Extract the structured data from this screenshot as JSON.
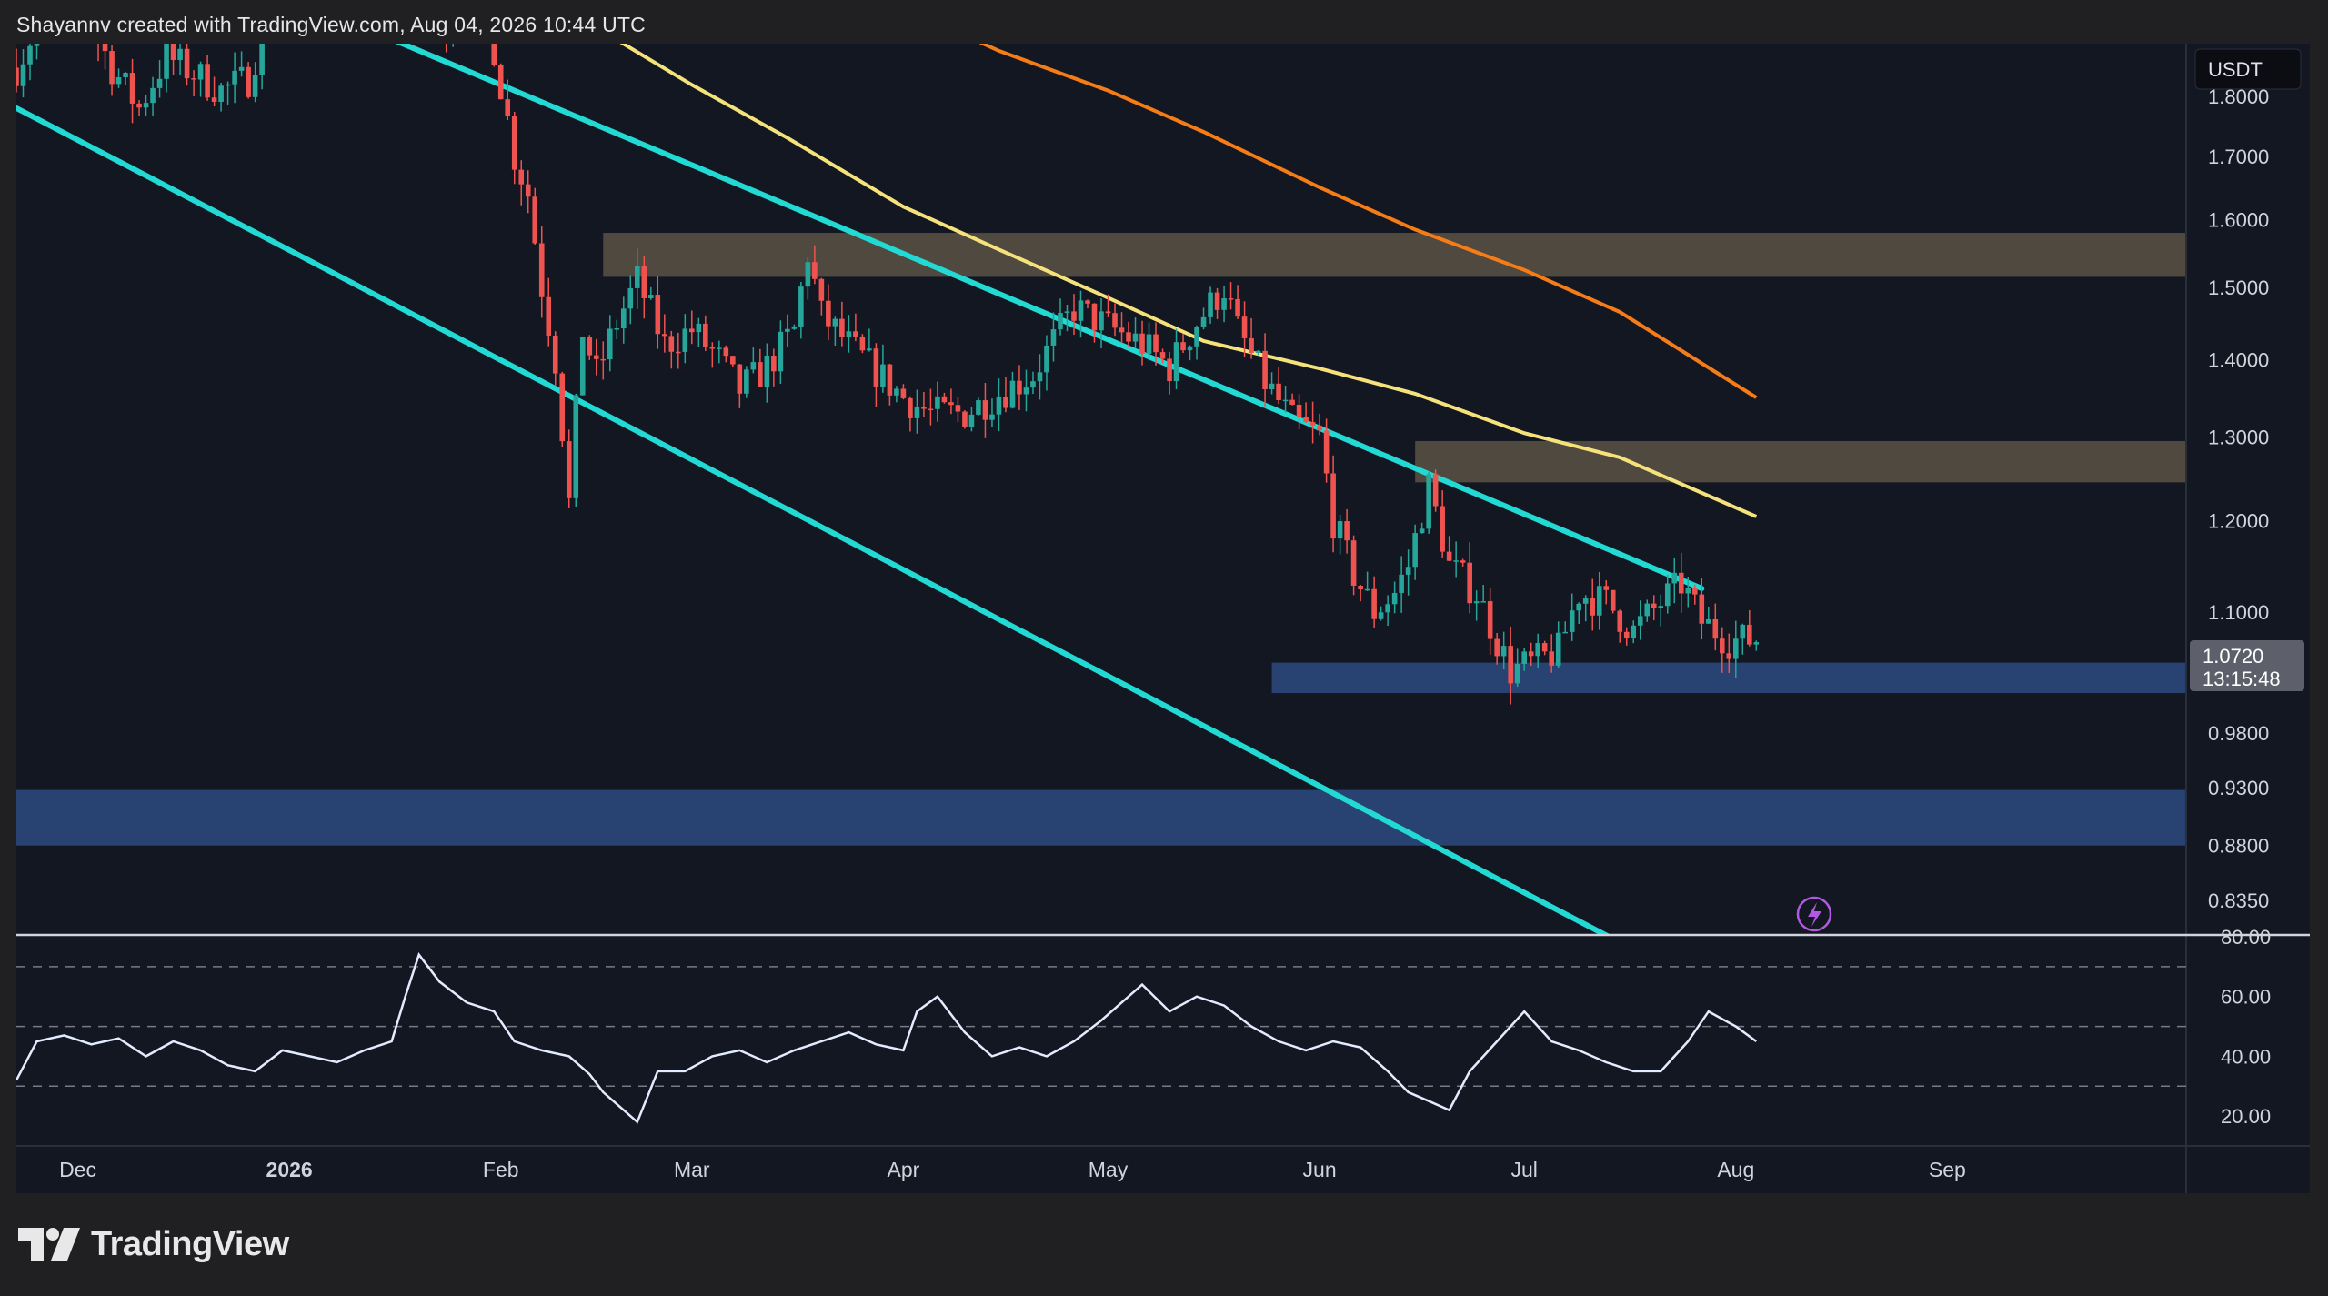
{
  "header": {
    "credit": "Shayannv created with TradingView.com, Aug 04, 2026 10:44 UTC"
  },
  "brand": {
    "name": "TradingView",
    "logo_icon": "tradingview-logo-icon"
  },
  "chart_data": {
    "type": "candlestick",
    "currency": "USDT",
    "price_axis": {
      "ticks": [
        1.8,
        1.7,
        1.6,
        1.5,
        1.4,
        1.3,
        1.2,
        1.1,
        0.98,
        0.93,
        0.88,
        0.835
      ],
      "tick_labels": [
        "1.8000",
        "1.7000",
        "1.6000",
        "1.5000",
        "1.4000",
        "1.3000",
        "1.2000",
        "1.1000",
        "0.9800",
        "0.9300",
        "0.8800",
        "0.8350"
      ],
      "scale": "log",
      "range": [
        0.808,
        1.893
      ]
    },
    "time_axis": {
      "labels": [
        "Dec",
        "2026",
        "Feb",
        "Mar",
        "Apr",
        "May",
        "Jun",
        "Jul",
        "Aug",
        "Sep"
      ],
      "label_dates": [
        "2025-12-01",
        "2026-01-01",
        "2026-02-01",
        "2026-03-01",
        "2026-04-01",
        "2026-05-01",
        "2026-06-01",
        "2026-07-01",
        "2026-08-01",
        "2026-09-01"
      ],
      "range": [
        "2025-11-22",
        "2026-10-06"
      ]
    },
    "last_price": {
      "value": 1.072,
      "label": "1.0720",
      "countdown": "13:15:48"
    },
    "zones": [
      {
        "type": "supply",
        "from": "2026-02-16",
        "to": "2026-10-06",
        "low": 1.515,
        "high": 1.58,
        "color": "#5b5244"
      },
      {
        "type": "supply",
        "from": "2026-06-15",
        "to": "2026-10-06",
        "low": 1.245,
        "high": 1.295,
        "color": "#5b5244"
      },
      {
        "type": "demand",
        "from": "2026-05-25",
        "to": "2026-10-06",
        "low": 1.018,
        "high": 1.048,
        "color": "#2d4a7f"
      },
      {
        "type": "demand",
        "from": "2025-11-22",
        "to": "2026-10-06",
        "low": 0.88,
        "high": 0.928,
        "color": "#2d4a7f"
      }
    ],
    "trendlines": [
      {
        "name": "upper channel",
        "points": [
          [
            "2026-01-03",
            1.97
          ],
          [
            "2026-07-27",
            1.125
          ]
        ],
        "color": "#22d9d3"
      },
      {
        "name": "lower channel",
        "points": [
          [
            "2025-11-22",
            1.78
          ],
          [
            "2026-07-14",
            0.805
          ]
        ],
        "color": "#22d9d3"
      }
    ],
    "moving_averages": [
      {
        "color": "#f5e27a",
        "points": [
          [
            "2026-02-03",
            2.0
          ],
          [
            "2026-02-18",
            1.9
          ],
          [
            "2026-03-01",
            1.82
          ],
          [
            "2026-03-15",
            1.73
          ],
          [
            "2026-04-01",
            1.62
          ],
          [
            "2026-04-15",
            1.555
          ],
          [
            "2026-05-01",
            1.485
          ],
          [
            "2026-05-15",
            1.425
          ],
          [
            "2026-06-01",
            1.388
          ],
          [
            "2026-06-15",
            1.355
          ],
          [
            "2026-07-01",
            1.305
          ],
          [
            "2026-07-15",
            1.275
          ],
          [
            "2026-08-04",
            1.205
          ]
        ]
      },
      {
        "color": "#f57c17",
        "points": [
          [
            "2026-04-01",
            1.96
          ],
          [
            "2026-04-15",
            1.88
          ],
          [
            "2026-05-01",
            1.81
          ],
          [
            "2026-05-15",
            1.74
          ],
          [
            "2026-06-01",
            1.65
          ],
          [
            "2026-06-15",
            1.585
          ],
          [
            "2026-07-01",
            1.525
          ],
          [
            "2026-07-15",
            1.465
          ],
          [
            "2026-08-04",
            1.35
          ]
        ]
      }
    ],
    "price_path": [
      [
        "2025-11-22",
        1.85
      ],
      [
        "2025-11-26",
        1.95
      ],
      [
        "2025-12-01",
        1.98
      ],
      [
        "2025-12-06",
        1.85
      ],
      [
        "2025-12-10",
        1.78
      ],
      [
        "2025-12-14",
        1.87
      ],
      [
        "2025-12-18",
        1.84
      ],
      [
        "2025-12-22",
        1.81
      ],
      [
        "2025-12-26",
        1.83
      ],
      [
        "2025-12-29",
        1.95
      ],
      [
        "2026-01-02",
        2.02
      ],
      [
        "2026-01-10",
        2.05
      ],
      [
        "2026-01-20",
        2.0
      ],
      [
        "2026-01-24",
        1.93
      ],
      [
        "2026-01-27",
        1.96
      ],
      [
        "2026-01-30",
        1.95
      ],
      [
        "2026-02-01",
        1.82
      ],
      [
        "2026-02-03",
        1.7
      ],
      [
        "2026-02-05",
        1.64
      ],
      [
        "2026-02-07",
        1.5
      ],
      [
        "2026-02-09",
        1.4
      ],
      [
        "2026-02-11",
        1.22
      ],
      [
        "2026-02-13",
        1.44
      ],
      [
        "2026-02-15",
        1.38
      ],
      [
        "2026-02-18",
        1.45
      ],
      [
        "2026-02-21",
        1.51
      ],
      [
        "2026-02-25",
        1.42
      ],
      [
        "2026-03-01",
        1.44
      ],
      [
        "2026-03-05",
        1.4
      ],
      [
        "2026-03-08",
        1.36
      ],
      [
        "2026-03-12",
        1.39
      ],
      [
        "2026-03-16",
        1.44
      ],
      [
        "2026-03-18",
        1.55
      ],
      [
        "2026-03-20",
        1.46
      ],
      [
        "2026-03-25",
        1.41
      ],
      [
        "2026-04-01",
        1.35
      ],
      [
        "2026-04-05",
        1.33
      ],
      [
        "2026-04-10",
        1.33
      ],
      [
        "2026-04-16",
        1.36
      ],
      [
        "2026-04-20",
        1.38
      ],
      [
        "2026-04-26",
        1.47
      ],
      [
        "2026-05-02",
        1.44
      ],
      [
        "2026-05-06",
        1.42
      ],
      [
        "2026-05-10",
        1.39
      ],
      [
        "2026-05-14",
        1.45
      ],
      [
        "2026-05-18",
        1.5
      ],
      [
        "2026-05-20",
        1.44
      ],
      [
        "2026-05-24",
        1.37
      ],
      [
        "2026-05-28",
        1.32
      ],
      [
        "2026-06-01",
        1.3
      ],
      [
        "2026-06-03",
        1.2
      ],
      [
        "2026-06-06",
        1.14
      ],
      [
        "2026-06-09",
        1.1
      ],
      [
        "2026-06-12",
        1.12
      ],
      [
        "2026-06-14",
        1.15
      ],
      [
        "2026-06-17",
        1.24
      ],
      [
        "2026-06-20",
        1.15
      ],
      [
        "2026-06-24",
        1.12
      ],
      [
        "2026-06-27",
        1.07
      ],
      [
        "2026-06-29",
        1.04
      ],
      [
        "2026-07-03",
        1.05
      ],
      [
        "2026-07-06",
        1.06
      ],
      [
        "2026-07-09",
        1.12
      ],
      [
        "2026-07-13",
        1.11
      ],
      [
        "2026-07-17",
        1.08
      ],
      [
        "2026-07-21",
        1.11
      ],
      [
        "2026-07-24",
        1.13
      ],
      [
        "2026-07-27",
        1.09
      ],
      [
        "2026-07-31",
        1.07
      ],
      [
        "2026-08-04",
        1.072
      ]
    ],
    "rsi": {
      "ticks": [
        80,
        60,
        40,
        20
      ],
      "tick_labels": [
        "80.00",
        "60.00",
        "40.00",
        "20.00"
      ],
      "levels": [
        70,
        50,
        30
      ],
      "range": [
        10,
        80
      ],
      "points": [
        [
          "2025-11-22",
          32
        ],
        [
          "2025-11-25",
          45
        ],
        [
          "2025-11-29",
          47
        ],
        [
          "2025-12-03",
          44
        ],
        [
          "2025-12-07",
          46
        ],
        [
          "2025-12-11",
          40
        ],
        [
          "2025-12-15",
          45
        ],
        [
          "2025-12-19",
          42
        ],
        [
          "2025-12-23",
          37
        ],
        [
          "2025-12-27",
          35
        ],
        [
          "2025-12-31",
          42
        ],
        [
          "2026-01-04",
          40
        ],
        [
          "2026-01-08",
          38
        ],
        [
          "2026-01-12",
          42
        ],
        [
          "2026-01-16",
          45
        ],
        [
          "2026-01-18",
          60
        ],
        [
          "2026-01-20",
          74
        ],
        [
          "2026-01-23",
          65
        ],
        [
          "2026-01-27",
          58
        ],
        [
          "2026-01-31",
          55
        ],
        [
          "2026-02-03",
          45
        ],
        [
          "2026-02-07",
          42
        ],
        [
          "2026-02-11",
          40
        ],
        [
          "2026-02-14",
          34
        ],
        [
          "2026-02-16",
          28
        ],
        [
          "2026-02-19",
          22
        ],
        [
          "2026-02-21",
          18
        ],
        [
          "2026-02-24",
          35
        ],
        [
          "2026-02-28",
          35
        ],
        [
          "2026-03-04",
          40
        ],
        [
          "2026-03-08",
          42
        ],
        [
          "2026-03-12",
          38
        ],
        [
          "2026-03-16",
          42
        ],
        [
          "2026-03-20",
          45
        ],
        [
          "2026-03-24",
          48
        ],
        [
          "2026-03-28",
          44
        ],
        [
          "2026-04-01",
          42
        ],
        [
          "2026-04-03",
          55
        ],
        [
          "2026-04-06",
          60
        ],
        [
          "2026-04-10",
          48
        ],
        [
          "2026-04-14",
          40
        ],
        [
          "2026-04-18",
          43
        ],
        [
          "2026-04-22",
          40
        ],
        [
          "2026-04-26",
          45
        ],
        [
          "2026-04-30",
          52
        ],
        [
          "2026-05-04",
          60
        ],
        [
          "2026-05-06",
          64
        ],
        [
          "2026-05-10",
          55
        ],
        [
          "2026-05-14",
          60
        ],
        [
          "2026-05-18",
          57
        ],
        [
          "2026-05-22",
          50
        ],
        [
          "2026-05-26",
          45
        ],
        [
          "2026-05-30",
          42
        ],
        [
          "2026-06-03",
          45
        ],
        [
          "2026-06-07",
          43
        ],
        [
          "2026-06-11",
          35
        ],
        [
          "2026-06-14",
          28
        ],
        [
          "2026-06-17",
          25
        ],
        [
          "2026-06-20",
          22
        ],
        [
          "2026-06-23",
          35
        ],
        [
          "2026-06-27",
          45
        ],
        [
          "2026-07-01",
          55
        ],
        [
          "2026-07-05",
          45
        ],
        [
          "2026-07-09",
          42
        ],
        [
          "2026-07-13",
          38
        ],
        [
          "2026-07-17",
          35
        ],
        [
          "2026-07-21",
          35
        ],
        [
          "2026-07-25",
          45
        ],
        [
          "2026-07-28",
          55
        ],
        [
          "2026-08-01",
          50
        ],
        [
          "2026-08-04",
          45
        ]
      ]
    }
  }
}
